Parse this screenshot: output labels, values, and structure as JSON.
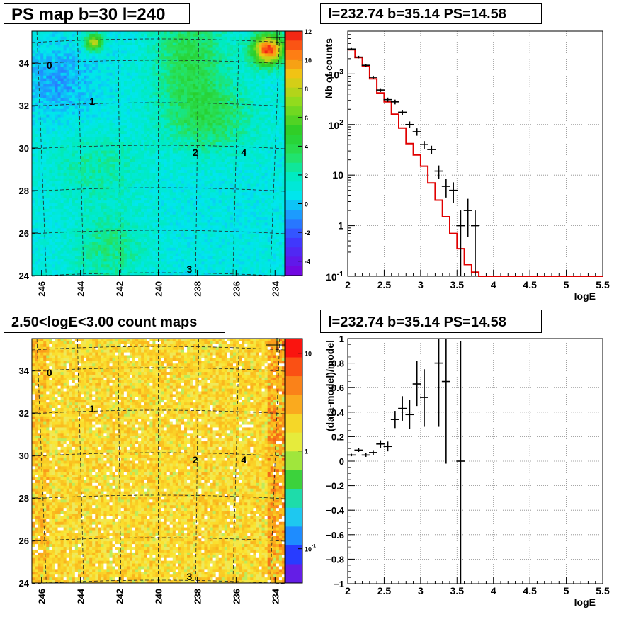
{
  "panels": {
    "tl": {
      "title": "PS map b=30 l=240"
    },
    "tr": {
      "title": "l=232.74 b=35.14 PS=14.58"
    },
    "bl": {
      "title": "2.50<logE<3.00 count maps"
    },
    "br": {
      "title": "l=232.74 b=35.14 PS=14.58"
    }
  },
  "chart_data": [
    {
      "id": "ps_map",
      "type": "heatmap",
      "title": "PS map b=30 l=240",
      "x_ticks": [
        "246",
        "244",
        "242",
        "240",
        "238",
        "236",
        "234"
      ],
      "y_ticks": [
        "24",
        "26",
        "28",
        "30",
        "32",
        "34"
      ],
      "xlim": [
        246.5,
        233.5
      ],
      "ylim": [
        24,
        35.5
      ],
      "colorbar": {
        "min": -5,
        "max": 12,
        "ticks": [
          "12",
          "10",
          "8",
          "6",
          "4",
          "2",
          "0",
          "-2",
          "-4"
        ]
      },
      "sources": [
        {
          "label": "0",
          "l": 245.6,
          "b": 33.9
        },
        {
          "label": "1",
          "l": 243.4,
          "b": 32.2
        },
        {
          "label": "2",
          "l": 238.1,
          "b": 29.8
        },
        {
          "label": "3",
          "l": 238.4,
          "b": 24.3
        },
        {
          "label": "4",
          "l": 235.6,
          "b": 29.8
        }
      ]
    },
    {
      "id": "spectrum",
      "type": "line",
      "title": "l=232.74 b=35.14 PS=14.58",
      "xlabel": "logE",
      "ylabel": "Nb of counts",
      "xlim": [
        2,
        5.5
      ],
      "ylim": [
        0.1,
        7000
      ],
      "yscale": "log",
      "grid": true,
      "x_ticks": [
        "2",
        "2.5",
        "3",
        "3.5",
        "4",
        "4.5",
        "5",
        "5.5"
      ],
      "y_ticks": [
        "10",
        "1"
      ],
      "y_ticks_sup": [
        {
          "base": "10",
          "exp": "3"
        },
        {
          "base": "10",
          "exp": "2"
        },
        {
          "base": "10",
          "exp": "-1"
        }
      ],
      "model_step": {
        "edges": [
          2.0,
          2.1,
          2.2,
          2.3,
          2.4,
          2.5,
          2.6,
          2.7,
          2.8,
          2.9,
          3.0,
          3.1,
          3.2,
          3.3,
          3.4,
          3.5,
          3.6,
          3.7,
          3.8,
          3.9,
          4.0,
          5.5
        ],
        "values": [
          3000,
          2100,
          1400,
          800,
          420,
          280,
          160,
          85,
          42,
          25,
          15,
          7,
          3.2,
          1.5,
          0.7,
          0.35,
          0.17,
          0.12,
          0.1,
          0.1,
          0.1
        ]
      },
      "data_points": [
        {
          "x": 2.05,
          "y": 3100,
          "lo": 2950,
          "hi": 3250
        },
        {
          "x": 2.15,
          "y": 2150,
          "lo": 2030,
          "hi": 2270
        },
        {
          "x": 2.25,
          "y": 1480,
          "lo": 1390,
          "hi": 1570
        },
        {
          "x": 2.35,
          "y": 860,
          "lo": 800,
          "hi": 920
        },
        {
          "x": 2.45,
          "y": 480,
          "lo": 440,
          "hi": 520
        },
        {
          "x": 2.55,
          "y": 310,
          "lo": 280,
          "hi": 340
        },
        {
          "x": 2.65,
          "y": 280,
          "lo": 250,
          "hi": 310
        },
        {
          "x": 2.75,
          "y": 175,
          "lo": 155,
          "hi": 195
        },
        {
          "x": 2.85,
          "y": 100,
          "lo": 85,
          "hi": 115
        },
        {
          "x": 2.95,
          "y": 72,
          "lo": 60,
          "hi": 84
        },
        {
          "x": 3.05,
          "y": 40,
          "lo": 33,
          "hi": 47
        },
        {
          "x": 3.15,
          "y": 32,
          "lo": 26,
          "hi": 38
        },
        {
          "x": 3.25,
          "y": 12,
          "lo": 8.5,
          "hi": 15.5
        },
        {
          "x": 3.35,
          "y": 6,
          "lo": 3.6,
          "hi": 8.4
        },
        {
          "x": 3.45,
          "y": 5,
          "lo": 2.8,
          "hi": 7.2
        },
        {
          "x": 3.55,
          "y": 1,
          "lo": 0.1,
          "hi": 2
        },
        {
          "x": 3.65,
          "y": 2,
          "lo": 0.6,
          "hi": 3.4
        },
        {
          "x": 3.75,
          "y": 1,
          "lo": 0.1,
          "hi": 2
        }
      ]
    },
    {
      "id": "count_map",
      "type": "heatmap",
      "title": "2.50<logE<3.00 count maps",
      "x_ticks": [
        "246",
        "244",
        "242",
        "240",
        "238",
        "236",
        "234"
      ],
      "y_ticks": [
        "24",
        "26",
        "28",
        "30",
        "32",
        "34"
      ],
      "xlim": [
        246.5,
        233.5
      ],
      "ylim": [
        24,
        35.5
      ],
      "colorbar": {
        "scale": "log",
        "ticks": [
          "10",
          "1"
        ],
        "ticks_sup": [
          {
            "base": "10",
            "exp": "-1"
          }
        ]
      },
      "sources": [
        {
          "label": "0",
          "l": 245.6,
          "b": 33.9
        },
        {
          "label": "1",
          "l": 243.4,
          "b": 32.2
        },
        {
          "label": "2",
          "l": 238.1,
          "b": 29.8
        },
        {
          "label": "3",
          "l": 238.4,
          "b": 24.3
        },
        {
          "label": "4",
          "l": 235.6,
          "b": 29.8
        }
      ]
    },
    {
      "id": "residuals",
      "type": "scatter",
      "title": "l=232.74 b=35.14 PS=14.58",
      "xlabel": "logE",
      "ylabel": "(data-model)/model",
      "xlim": [
        2,
        5.5
      ],
      "ylim": [
        -1,
        1
      ],
      "grid": true,
      "x_ticks": [
        "2",
        "2.5",
        "3",
        "3.5",
        "4",
        "4.5",
        "5",
        "5.5"
      ],
      "y_ticks": [
        "1",
        "0.8",
        "0.6",
        "0.4",
        "0.2",
        "0",
        "−0.2",
        "−0.4",
        "−0.6",
        "−0.8",
        "−1"
      ],
      "points": [
        {
          "x": 2.05,
          "y": 0.05,
          "lo": 0.04,
          "hi": 0.06
        },
        {
          "x": 2.15,
          "y": 0.09,
          "lo": 0.075,
          "hi": 0.105
        },
        {
          "x": 2.25,
          "y": 0.05,
          "lo": 0.035,
          "hi": 0.065
        },
        {
          "x": 2.35,
          "y": 0.07,
          "lo": 0.05,
          "hi": 0.09
        },
        {
          "x": 2.45,
          "y": 0.14,
          "lo": 0.11,
          "hi": 0.17
        },
        {
          "x": 2.55,
          "y": 0.12,
          "lo": 0.08,
          "hi": 0.16
        },
        {
          "x": 2.65,
          "y": 0.34,
          "lo": 0.27,
          "hi": 0.41
        },
        {
          "x": 2.75,
          "y": 0.43,
          "lo": 0.33,
          "hi": 0.53
        },
        {
          "x": 2.85,
          "y": 0.38,
          "lo": 0.26,
          "hi": 0.5
        },
        {
          "x": 2.95,
          "y": 0.63,
          "lo": 0.45,
          "hi": 0.82
        },
        {
          "x": 3.05,
          "y": 0.52,
          "lo": 0.28,
          "hi": 0.75
        },
        {
          "x": 3.25,
          "y": 0.8,
          "lo": 0.28,
          "hi": 1.0
        },
        {
          "x": 3.35,
          "y": 0.65,
          "lo": -0.02,
          "hi": 1.0
        },
        {
          "x": 3.55,
          "y": 0.0,
          "lo": -1.0,
          "hi": 0.98
        }
      ]
    }
  ]
}
